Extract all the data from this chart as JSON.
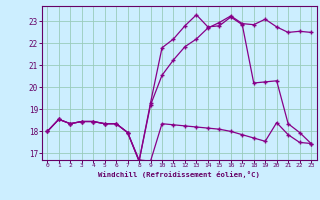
{
  "xlabel": "Windchill (Refroidissement éolien,°C)",
  "bg_color": "#cceeff",
  "line_color": "#880088",
  "grid_color": "#99ccbb",
  "axis_color": "#660066",
  "xlim": [
    -0.5,
    23.5
  ],
  "ylim": [
    16.7,
    23.7
  ],
  "yticks": [
    17,
    18,
    19,
    20,
    21,
    22,
    23
  ],
  "xticks": [
    0,
    1,
    2,
    3,
    4,
    5,
    6,
    7,
    8,
    9,
    10,
    11,
    12,
    13,
    14,
    15,
    16,
    17,
    18,
    19,
    20,
    21,
    22,
    23
  ],
  "line1_x": [
    0,
    1,
    2,
    3,
    4,
    5,
    6,
    7,
    8,
    9,
    10,
    11,
    12,
    13,
    14,
    15,
    16,
    17,
    18,
    19,
    20,
    21,
    22,
    23
  ],
  "line1_y": [
    18.0,
    18.55,
    18.35,
    18.45,
    18.45,
    18.35,
    18.35,
    17.95,
    16.7,
    16.65,
    18.35,
    18.3,
    18.25,
    18.2,
    18.15,
    18.1,
    18.0,
    17.85,
    17.7,
    17.55,
    18.4,
    17.85,
    17.5,
    17.45
  ],
  "line2_x": [
    0,
    1,
    2,
    3,
    4,
    5,
    6,
    7,
    8,
    9,
    10,
    11,
    12,
    13,
    14,
    15,
    16,
    17,
    18,
    19,
    20,
    21,
    22,
    23
  ],
  "line2_y": [
    18.0,
    18.55,
    18.35,
    18.45,
    18.45,
    18.35,
    18.35,
    17.95,
    16.65,
    19.3,
    21.8,
    22.2,
    22.8,
    23.3,
    22.75,
    22.8,
    23.2,
    22.85,
    20.2,
    20.25,
    20.3,
    18.35,
    17.95,
    17.45
  ],
  "line3_x": [
    0,
    1,
    2,
    3,
    4,
    5,
    6,
    7,
    8,
    9,
    10,
    11,
    12,
    13,
    14,
    15,
    16,
    17,
    18,
    19,
    20,
    21,
    22,
    23
  ],
  "line3_y": [
    18.0,
    18.55,
    18.35,
    18.45,
    18.45,
    18.35,
    18.35,
    17.95,
    16.65,
    19.2,
    20.55,
    21.25,
    21.85,
    22.2,
    22.7,
    22.95,
    23.25,
    22.9,
    22.85,
    23.1,
    22.75,
    22.5,
    22.55,
    22.5
  ]
}
